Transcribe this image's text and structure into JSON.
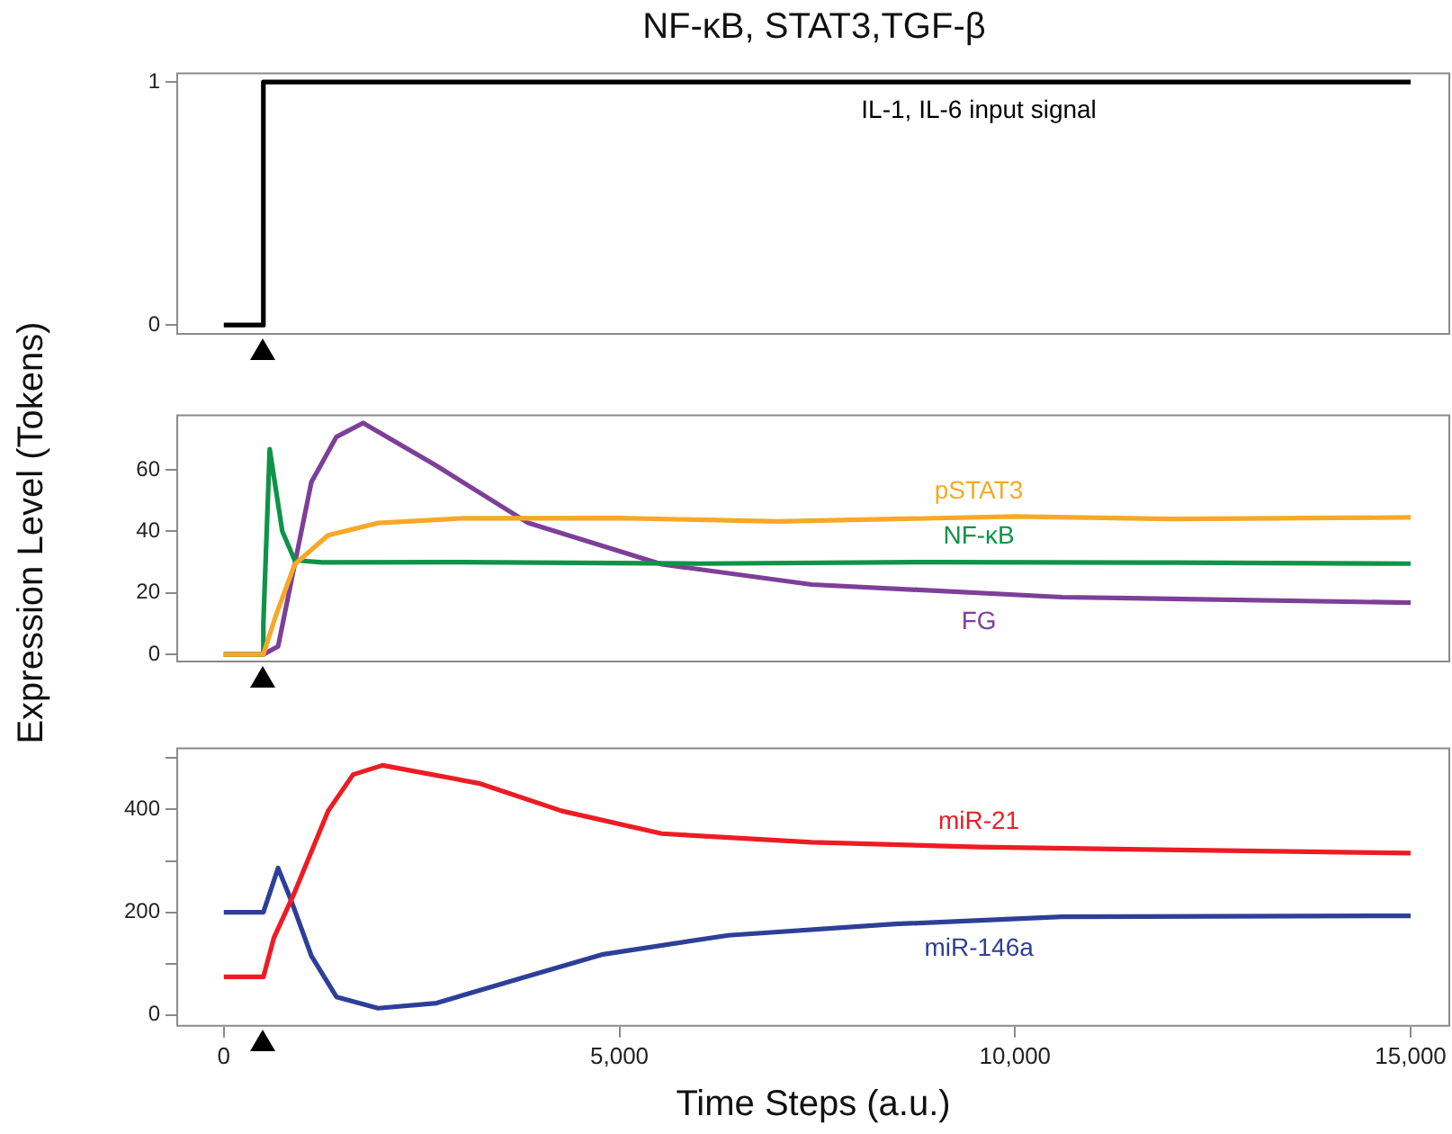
{
  "chart_data": [
    {
      "type": "line",
      "title": "NF-κB, STAT3,TGF-β",
      "tick_labels": "y",
      "xlim": [
        -600,
        15500
      ],
      "ylim": [
        -0.04,
        1.04
      ],
      "yticks": [
        0,
        1
      ],
      "series": [
        {
          "name": "IL-1, IL-6 input signal",
          "color": "#000000",
          "x": [
            0,
            500,
            500,
            15000
          ],
          "values": [
            0,
            0,
            1,
            1
          ]
        }
      ]
    },
    {
      "type": "line",
      "ylabel": "Expression Level (Tokens)",
      "tick_labels": "y",
      "xlim": [
        -600,
        15500
      ],
      "ylim": [
        -2.6,
        78
      ],
      "yticks": [
        0,
        20,
        40,
        60
      ],
      "series": [
        {
          "name": "pSTAT3",
          "color": "#f7a829",
          "x": [
            0,
            500,
            650,
            896,
            1318,
            1950,
            3000,
            5000,
            7000,
            10000,
            12000,
            15000
          ],
          "values": [
            0,
            0,
            12,
            29.3,
            38.7,
            42.7,
            44.2,
            44.3,
            43.2,
            44.8,
            44,
            44.5
          ]
        },
        {
          "name": "NF-κB",
          "color": "#0f9347",
          "x": [
            0,
            500,
            500,
            580,
            739,
            896,
            1250,
            3000,
            6000,
            9000,
            12000,
            15000
          ],
          "values": [
            0,
            0,
            10,
            66.7,
            40,
            30.6,
            29.9,
            30,
            29.5,
            30,
            29.8,
            29.5
          ]
        },
        {
          "name": "FG",
          "color": "#7d3f98",
          "x": [
            0,
            500,
            686,
            896,
            1107,
            1424,
            1761,
            2688,
            3848,
            5535,
            7431,
            10593,
            15000
          ],
          "values": [
            0,
            0,
            2.6,
            29.3,
            56,
            70.7,
            75.2,
            61.3,
            42.7,
            29.3,
            22.7,
            18.6,
            16.8
          ]
        }
      ]
    },
    {
      "type": "line",
      "xlabel": "Time Steps (a.u.)",
      "xlim": [
        -600,
        15500
      ],
      "xticks": [
        0,
        {
          "value": 5000,
          "label": "5,000"
        },
        {
          "value": 10000,
          "label": "10,000"
        },
        {
          "value": 15000,
          "label": "15,000"
        }
      ],
      "ylim": [
        -23,
        521
      ],
      "yticks": [
        0,
        {
          "value": 100,
          "label": null
        },
        200,
        {
          "value": 300,
          "label": null
        },
        400,
        {
          "value": 500,
          "label": null
        }
      ],
      "series": [
        {
          "name": "miR-21",
          "color": "#ed1c24",
          "x": [
            0,
            500,
            633,
            896,
            1318,
            1634,
            2006,
            3222,
            4275,
            5535,
            7431,
            9537,
            11645,
            15000
          ],
          "values": [
            74,
            74,
            150,
            239,
            397,
            468,
            486,
            451,
            397,
            353,
            336,
            327,
            322,
            315
          ]
        },
        {
          "name": "miR-146a",
          "color": "#2e3f98",
          "x": [
            0,
            500,
            686,
            856,
            1107,
            1424,
            1950,
            2688,
            3742,
            4796,
            6377,
            8485,
            10593,
            15000
          ],
          "values": [
            200,
            200,
            286,
            221,
            115,
            35,
            13,
            23,
            71,
            118,
            155,
            177,
            191,
            193
          ]
        }
      ]
    }
  ]
}
